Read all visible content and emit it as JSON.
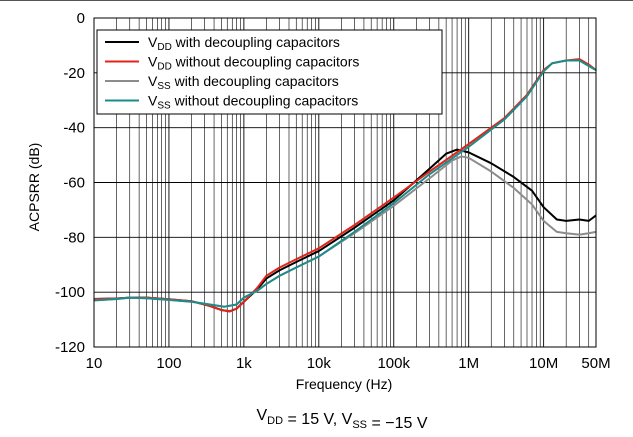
{
  "chart_data": {
    "type": "line",
    "xlabel": "Frequency (Hz)",
    "ylabel": "ACPSRR (dB)",
    "caption": "V_DD = 15 V, V_SS = −15 V",
    "x_scale": "log",
    "xlim": [
      10,
      50000000
    ],
    "ylim": [
      -120,
      0
    ],
    "x_ticks": [
      10,
      100,
      1000,
      10000,
      100000,
      1000000,
      10000000,
      50000000
    ],
    "x_tick_labels": [
      "10",
      "100",
      "1k",
      "10k",
      "100k",
      "1M",
      "10M",
      "50M"
    ],
    "y_ticks": [
      0,
      -20,
      -40,
      -60,
      -80,
      -100,
      -120
    ],
    "y_tick_labels": [
      "0",
      "-20",
      "-40",
      "-60",
      "-80",
      "-100",
      "-120"
    ],
    "grid": true,
    "legend_position": "top-left",
    "series": [
      {
        "name": "VDD with decoupling capacitors",
        "label_main": "V",
        "label_sub": "DD",
        "label_rest": " with decoupling capacitors",
        "color": "#000000",
        "points": [
          [
            10,
            -102.5
          ],
          [
            20,
            -102.3
          ],
          [
            30,
            -102
          ],
          [
            50,
            -102
          ],
          [
            100,
            -102.6
          ],
          [
            200,
            -103.3
          ],
          [
            350,
            -105
          ],
          [
            500,
            -106.5
          ],
          [
            650,
            -107
          ],
          [
            800,
            -106
          ],
          [
            1000,
            -103.5
          ],
          [
            1500,
            -99
          ],
          [
            2000,
            -95
          ],
          [
            3000,
            -92
          ],
          [
            5000,
            -89
          ],
          [
            10000,
            -85
          ],
          [
            30000,
            -76.5
          ],
          [
            100000,
            -66.5
          ],
          [
            300000,
            -55
          ],
          [
            500000,
            -49.5
          ],
          [
            700000,
            -48
          ],
          [
            1000000,
            -49
          ],
          [
            2000000,
            -53
          ],
          [
            4000000,
            -58
          ],
          [
            7000000,
            -63
          ],
          [
            10000000,
            -69
          ],
          [
            15000000,
            -73.5
          ],
          [
            20000000,
            -74
          ],
          [
            30000000,
            -73.5
          ],
          [
            40000000,
            -74
          ],
          [
            50000000,
            -72
          ]
        ]
      },
      {
        "name": "VDD without decoupling capacitors",
        "label_main": "V",
        "label_sub": "DD",
        "label_rest": " without decoupling capacitors",
        "color": "#e2231a",
        "points": [
          [
            10,
            -102.5
          ],
          [
            20,
            -102.3
          ],
          [
            30,
            -102
          ],
          [
            50,
            -102
          ],
          [
            100,
            -102.6
          ],
          [
            200,
            -103.3
          ],
          [
            350,
            -105
          ],
          [
            500,
            -106.5
          ],
          [
            650,
            -107
          ],
          [
            800,
            -106
          ],
          [
            1000,
            -103.5
          ],
          [
            1500,
            -98.5
          ],
          [
            2000,
            -94
          ],
          [
            3000,
            -91
          ],
          [
            5000,
            -88
          ],
          [
            10000,
            -84
          ],
          [
            30000,
            -75.5
          ],
          [
            100000,
            -65.5
          ],
          [
            300000,
            -56
          ],
          [
            1000000,
            -46
          ],
          [
            3000000,
            -36.5
          ],
          [
            6000000,
            -28
          ],
          [
            10000000,
            -19
          ],
          [
            13000000,
            -16.5
          ],
          [
            20000000,
            -15.5
          ],
          [
            30000000,
            -15
          ],
          [
            40000000,
            -17
          ],
          [
            50000000,
            -19
          ]
        ]
      },
      {
        "name": "VSS with decoupling capacitors",
        "label_main": "V",
        "label_sub": "SS",
        "label_rest": " with decoupling capacitors",
        "color": "#8c8c8c",
        "points": [
          [
            10,
            -103
          ],
          [
            20,
            -102.5
          ],
          [
            30,
            -102
          ],
          [
            50,
            -102.2
          ],
          [
            100,
            -102.8
          ],
          [
            200,
            -103.5
          ],
          [
            350,
            -104.5
          ],
          [
            550,
            -105.3
          ],
          [
            800,
            -104.5
          ],
          [
            1000,
            -102
          ],
          [
            1500,
            -99.5
          ],
          [
            2000,
            -97
          ],
          [
            3000,
            -94
          ],
          [
            5000,
            -91
          ],
          [
            10000,
            -87
          ],
          [
            30000,
            -78.5
          ],
          [
            100000,
            -68.5
          ],
          [
            300000,
            -58.5
          ],
          [
            600000,
            -52
          ],
          [
            800000,
            -50.5
          ],
          [
            1000000,
            -51
          ],
          [
            2000000,
            -56
          ],
          [
            4000000,
            -62
          ],
          [
            7000000,
            -68
          ],
          [
            10000000,
            -74
          ],
          [
            15000000,
            -78
          ],
          [
            20000000,
            -78.5
          ],
          [
            30000000,
            -79
          ],
          [
            40000000,
            -78.5
          ],
          [
            50000000,
            -78
          ]
        ]
      },
      {
        "name": "VSS without decoupling capacitors",
        "label_main": "V",
        "label_sub": "SS",
        "label_rest": " without decoupling capacitors",
        "color": "#1a8c8a",
        "points": [
          [
            10,
            -103
          ],
          [
            20,
            -102.5
          ],
          [
            30,
            -102
          ],
          [
            50,
            -102.2
          ],
          [
            100,
            -102.8
          ],
          [
            200,
            -103.5
          ],
          [
            350,
            -104.5
          ],
          [
            550,
            -105.3
          ],
          [
            800,
            -104.5
          ],
          [
            1000,
            -102
          ],
          [
            1500,
            -99.5
          ],
          [
            2000,
            -97
          ],
          [
            3000,
            -94
          ],
          [
            5000,
            -91
          ],
          [
            10000,
            -87
          ],
          [
            30000,
            -78
          ],
          [
            100000,
            -67.5
          ],
          [
            300000,
            -57
          ],
          [
            1000000,
            -47
          ],
          [
            3000000,
            -37
          ],
          [
            6000000,
            -28.5
          ],
          [
            10000000,
            -19.5
          ],
          [
            13000000,
            -16.5
          ],
          [
            20000000,
            -15.5
          ],
          [
            30000000,
            -15.5
          ],
          [
            40000000,
            -17.5
          ],
          [
            50000000,
            -19
          ]
        ]
      }
    ]
  }
}
